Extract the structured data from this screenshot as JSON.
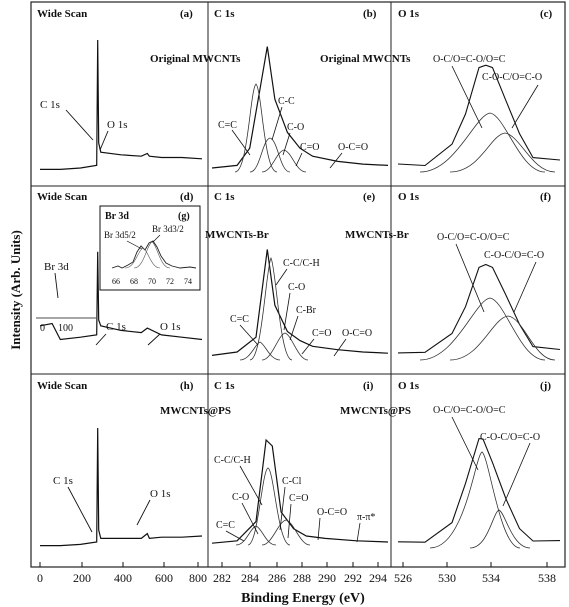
{
  "chart_data": {
    "type": "line",
    "y_axis_label": "Intensity (Arb. Units)",
    "x_axis_label": "Binding Energy (eV)",
    "columns": [
      {
        "id": "wide",
        "ticks": [
          "0",
          "200",
          "400",
          "600",
          "800"
        ]
      },
      {
        "id": "c1s",
        "ticks": [
          "282",
          "284",
          "286",
          "288",
          "290",
          "292",
          "294"
        ]
      },
      {
        "id": "o1s",
        "ticks": [
          "526",
          "530",
          "534",
          "538"
        ]
      }
    ],
    "rows": [
      {
        "panels": [
          {
            "col": 0,
            "title": "Wide Scan",
            "letter": "(a)",
            "annotations": [
              {
                "text": "C 1s"
              },
              {
                "text": "O 1s"
              }
            ]
          },
          {
            "col": 1,
            "title": "C 1s",
            "letter": "(b)",
            "sample": "Original MWCNTs",
            "annotations": [
              {
                "text": "C=C"
              },
              {
                "text": "C-C"
              },
              {
                "text": "C-O"
              },
              {
                "text": "C=O"
              },
              {
                "text": "O-C=O"
              }
            ]
          },
          {
            "col": 2,
            "title": "O 1s",
            "letter": "(c)",
            "sample": "Original MWCNTs",
            "annotations": [
              {
                "text": "O-C/O=C-O/O=C"
              },
              {
                "text": "C-O-C/O=C-O"
              }
            ]
          }
        ]
      },
      {
        "panels": [
          {
            "col": 0,
            "title": "Wide Scan",
            "letter": "(d)",
            "annotations": [
              {
                "text": "Br 3d"
              },
              {
                "text": "C 1s"
              },
              {
                "text": "O 1s"
              },
              {
                "text": "0"
              },
              {
                "text": "100"
              }
            ],
            "inset": {
              "title": "Br 3d",
              "letter": "(g)",
              "labels": [
                "Br 3d5/2",
                "Br 3d3/2"
              ],
              "ticks": [
                "66",
                "68",
                "70",
                "72",
                "74"
              ]
            }
          },
          {
            "col": 1,
            "title": "C 1s",
            "letter": "(e)",
            "sample": "MWCNTs-Br",
            "annotations": [
              {
                "text": "C-C/C-H"
              },
              {
                "text": "C-O"
              },
              {
                "text": "C-Br"
              },
              {
                "text": "C=C"
              },
              {
                "text": "C=O"
              },
              {
                "text": "O-C=O"
              }
            ]
          },
          {
            "col": 2,
            "title": "O 1s",
            "letter": "(f)",
            "sample": "MWCNTs-Br",
            "annotations": [
              {
                "text": "O-C/O=C-O/O=C"
              },
              {
                "text": "C-O-C/O=C-O"
              }
            ]
          }
        ]
      },
      {
        "panels": [
          {
            "col": 0,
            "title": "Wide Scan",
            "letter": "(h)",
            "annotations": [
              {
                "text": "C 1s"
              },
              {
                "text": "O 1s"
              }
            ]
          },
          {
            "col": 1,
            "title": "C 1s",
            "letter": "(i)",
            "sample": "MWCNTs@PS",
            "annotations": [
              {
                "text": "C-C/C-H"
              },
              {
                "text": "C-Cl"
              },
              {
                "text": "C-O"
              },
              {
                "text": "C=O"
              },
              {
                "text": "C=C"
              },
              {
                "text": "O-C=O"
              },
              {
                "text": "π-π*"
              }
            ]
          },
          {
            "col": 2,
            "title": "O 1s",
            "letter": "(j)",
            "sample": "MWCNTs@PS",
            "annotations": [
              {
                "text": "O-C/O=C-O/O=C"
              },
              {
                "text": "C-O-C/O=C-O"
              }
            ]
          }
        ]
      }
    ],
    "series": [
      {
        "panel": "(a)",
        "name": "",
        "x": [
          0,
          100,
          200,
          280,
          285,
          290,
          300,
          400,
          500,
          530,
          540,
          600,
          700,
          800
        ],
        "y": [
          0.02,
          0.02,
          0.03,
          0.05,
          1.0,
          0.22,
          0.15,
          0.13,
          0.12,
          0.14,
          0.12,
          0.11,
          0.11,
          0.1
        ]
      },
      {
        "panel": "(b)",
        "name": "",
        "x": [
          280,
          282,
          283,
          283.8,
          284.4,
          285,
          286,
          287,
          288,
          290,
          292,
          294
        ],
        "y": [
          0.03,
          0.05,
          0.18,
          0.62,
          0.95,
          0.55,
          0.3,
          0.18,
          0.12,
          0.08,
          0.06,
          0.05
        ]
      },
      {
        "panel": "(c)",
        "name": "",
        "x": [
          526,
          528,
          530,
          531,
          532,
          532.5,
          533,
          534,
          535,
          536,
          538
        ],
        "y": [
          0.05,
          0.06,
          0.2,
          0.45,
          0.78,
          0.82,
          0.78,
          0.55,
          0.28,
          0.12,
          0.08
        ]
      },
      {
        "panel": "(d)",
        "name": "",
        "x": [
          0,
          60,
          100,
          200,
          280,
          285,
          290,
          300,
          400,
          500,
          530,
          600,
          700,
          800
        ],
        "y": [
          0.3,
          0.32,
          0.18,
          0.2,
          0.22,
          0.95,
          0.35,
          0.3,
          0.26,
          0.24,
          0.28,
          0.22,
          0.2,
          0.18
        ]
      },
      {
        "panel": "(e)",
        "name": "",
        "x": [
          280,
          282,
          283.5,
          284.4,
          285,
          286,
          287,
          288,
          290,
          292,
          294
        ],
        "y": [
          0.04,
          0.07,
          0.2,
          0.97,
          0.48,
          0.25,
          0.17,
          0.12,
          0.09,
          0.07,
          0.06
        ]
      },
      {
        "panel": "(f)",
        "name": "",
        "x": [
          526,
          528,
          530,
          531,
          532,
          532.5,
          533,
          534,
          535,
          536,
          538
        ],
        "y": [
          0.05,
          0.08,
          0.22,
          0.48,
          0.8,
          0.85,
          0.8,
          0.58,
          0.3,
          0.13,
          0.08
        ]
      },
      {
        "panel": "(h)",
        "name": "",
        "x": [
          0,
          100,
          200,
          280,
          285,
          290,
          300,
          400,
          500,
          530,
          540,
          600,
          700,
          800
        ],
        "y": [
          0.02,
          0.02,
          0.03,
          0.05,
          1.0,
          0.15,
          0.08,
          0.08,
          0.08,
          0.12,
          0.08,
          0.09,
          0.09,
          0.1
        ]
      },
      {
        "panel": "(i)",
        "name": "",
        "x": [
          280,
          282,
          283.5,
          284.3,
          284.8,
          285.5,
          286.5,
          287.5,
          289,
          291.5,
          294
        ],
        "y": [
          0.04,
          0.06,
          0.22,
          0.9,
          0.85,
          0.3,
          0.16,
          0.1,
          0.08,
          0.06,
          0.05
        ]
      },
      {
        "panel": "(j)",
        "name": "",
        "x": [
          526,
          528,
          530,
          531,
          532,
          532.3,
          533,
          534,
          535,
          536,
          538
        ],
        "y": [
          0.04,
          0.06,
          0.2,
          0.55,
          0.9,
          0.92,
          0.7,
          0.42,
          0.15,
          0.07,
          0.05
        ]
      }
    ]
  }
}
